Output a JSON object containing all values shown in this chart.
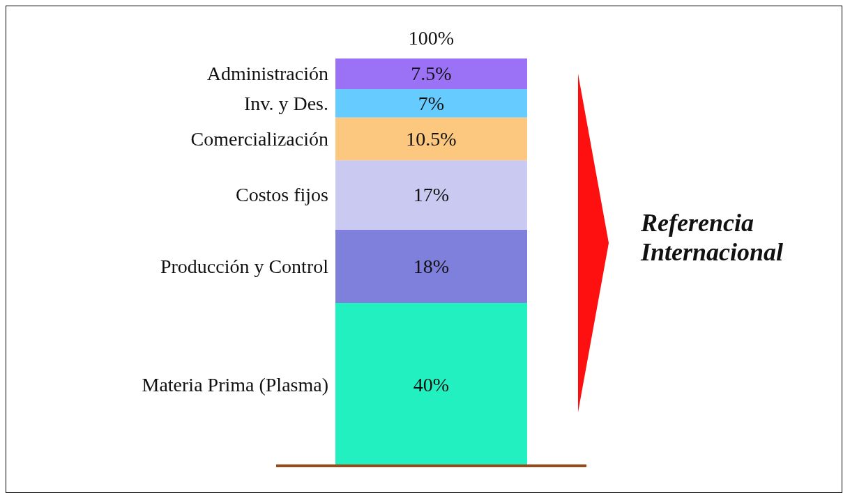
{
  "chart_data": {
    "type": "bar",
    "stacked": true,
    "categories": [
      null
    ],
    "series": [
      {
        "name": "Materia Prima (Plasma)",
        "color": "#22f0c0",
        "values": [
          40
        ],
        "value_labels": [
          "40%"
        ]
      },
      {
        "name": "Producción y Control",
        "color": "#7f7fdc",
        "values": [
          18
        ],
        "value_labels": [
          "18%"
        ]
      },
      {
        "name": "Costos fijos",
        "color": "#c9c9f2",
        "values": [
          17
        ],
        "value_labels": [
          "17%"
        ]
      },
      {
        "name": "Comercialización",
        "color": "#fcc77e",
        "values": [
          10.5
        ],
        "value_labels": [
          "10.5%"
        ]
      },
      {
        "name": "Inv. y Des.",
        "color": "#66ccff",
        "values": [
          7
        ],
        "value_labels": [
          "7%"
        ]
      },
      {
        "name": "Administración",
        "color": "#9b72f6",
        "values": [
          7.5
        ],
        "value_labels": [
          "7.5%"
        ]
      }
    ],
    "totals": [
      "100%"
    ],
    "annotations": [
      "Referencia Internacional"
    ]
  }
}
